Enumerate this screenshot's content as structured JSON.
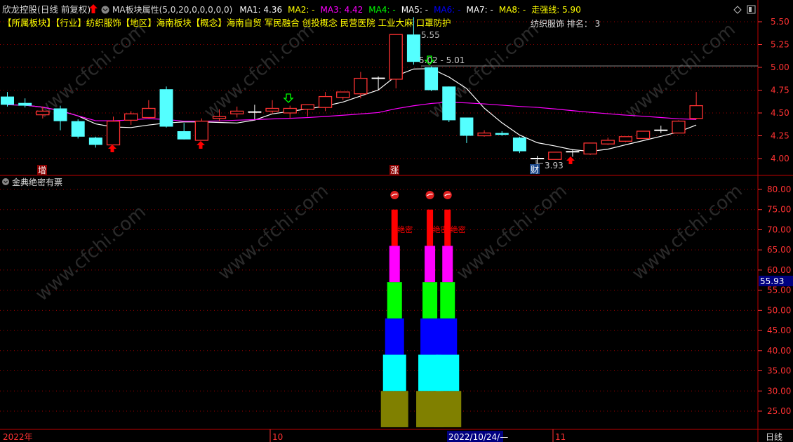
{
  "header": {
    "stock_name": "欣龙控股(日线 前复权)",
    "indicator_name": "MA板块属性(5,0,20,0,0,0,0,0)",
    "ma": [
      {
        "label": "MA1: 4.36",
        "color": "#ffffff"
      },
      {
        "label": "MA2: -",
        "color": "#ffff00"
      },
      {
        "label": "MA3: 4.42",
        "color": "#ff00ff"
      },
      {
        "label": "MA4: -",
        "color": "#00ff00"
      },
      {
        "label": "MA5: -",
        "color": "#ffffff"
      },
      {
        "label": "MA6: -",
        "color": "#0000ff"
      },
      {
        "label": "MA7: -",
        "color": "#ffffff"
      },
      {
        "label": "MA8: -",
        "color": "#ffff00"
      },
      {
        "label": "走强线: 5.90",
        "color": "#ffff00"
      }
    ],
    "sector_line": "【所属板块】【行业】纺织服饰【地区】海南板块【概念】海南自贸 军民融合 创投概念 民营医院 工业大麻 口罩防护",
    "rank_label": "纺织服饰 排名： 3"
  },
  "colors": {
    "up": "#ff3232",
    "down": "#54ffff",
    "ma1": "#ffffff",
    "ma3": "#ff00ff",
    "grid": "#a00000",
    "axis": "#ff3232"
  },
  "price_pane": {
    "y_ticks": [
      "5.50",
      "5.25",
      "5.00",
      "4.75",
      "4.50",
      "4.25",
      "4.00"
    ],
    "high_label": "5.55",
    "range_label": "5.02 - 5.01",
    "low_label": "3.93",
    "markers": [
      {
        "text": "增",
        "bg": "#8b0000"
      },
      {
        "text": "涨",
        "bg": "#8b0000"
      },
      {
        "text": "财",
        "bg": "#1e4a8c"
      }
    ]
  },
  "candles": [
    [
      4.68,
      4.73,
      4.57,
      4.59
    ],
    [
      4.61,
      4.66,
      4.56,
      4.58
    ],
    [
      4.48,
      4.57,
      4.44,
      4.52
    ],
    [
      4.55,
      4.58,
      4.31,
      4.41
    ],
    [
      4.41,
      4.43,
      4.22,
      4.24
    ],
    [
      4.23,
      4.24,
      4.12,
      4.15
    ],
    [
      4.15,
      4.46,
      4.15,
      4.41
    ],
    [
      4.42,
      4.52,
      4.37,
      4.49
    ],
    [
      4.45,
      4.64,
      4.45,
      4.55
    ],
    [
      4.76,
      4.79,
      4.34,
      4.35
    ],
    [
      4.3,
      4.39,
      4.21,
      4.21
    ],
    [
      4.2,
      4.44,
      4.2,
      4.41
    ],
    [
      4.44,
      4.54,
      4.41,
      4.46
    ],
    [
      4.49,
      4.57,
      4.45,
      4.52
    ],
    [
      4.51,
      4.59,
      4.43,
      4.51
    ],
    [
      4.52,
      4.64,
      4.49,
      4.55
    ],
    [
      4.5,
      4.58,
      4.44,
      4.55
    ],
    [
      4.54,
      4.59,
      4.46,
      4.59
    ],
    [
      4.56,
      4.73,
      4.52,
      4.68
    ],
    [
      4.67,
      4.73,
      4.64,
      4.73
    ],
    [
      4.71,
      4.95,
      4.66,
      4.88
    ],
    [
      4.88,
      4.9,
      4.75,
      4.88
    ],
    [
      4.87,
      5.36,
      4.77,
      5.36
    ],
    [
      5.36,
      5.55,
      5.03,
      5.06
    ],
    [
      5.0,
      5.01,
      4.74,
      4.75
    ],
    [
      4.79,
      4.79,
      4.4,
      4.42
    ],
    [
      4.45,
      4.45,
      4.17,
      4.25
    ],
    [
      4.25,
      4.31,
      4.24,
      4.28
    ],
    [
      4.28,
      4.3,
      4.25,
      4.26
    ],
    [
      4.23,
      4.24,
      4.06,
      4.08
    ],
    [
      4.0,
      4.03,
      3.93,
      4.0
    ],
    [
      3.99,
      4.07,
      3.99,
      4.07
    ],
    [
      4.07,
      4.1,
      4.02,
      4.075
    ],
    [
      4.05,
      4.17,
      4.04,
      4.17
    ],
    [
      4.16,
      4.23,
      4.15,
      4.2
    ],
    [
      4.19,
      4.24,
      4.18,
      4.24
    ],
    [
      4.22,
      4.3,
      4.22,
      4.3
    ],
    [
      4.3,
      4.36,
      4.28,
      4.31
    ],
    [
      4.28,
      4.42,
      4.28,
      4.41
    ],
    [
      4.44,
      4.73,
      4.43,
      4.58
    ]
  ],
  "lower_pane": {
    "title": "金典绝密有票",
    "y_ticks": [
      "80.00",
      "75.00",
      "70.00",
      "65.00",
      "60.00",
      "55.00",
      "50.00",
      "45.00",
      "40.00",
      "35.00",
      "30.00",
      "25.00"
    ],
    "current_value": "55.93",
    "signal_label": "绝密",
    "signal_candles": [
      22,
      24,
      25
    ],
    "layers": [
      {
        "from": 21,
        "to": 30,
        "color": "#808000"
      },
      {
        "from": 30,
        "to": 39,
        "color": "#00ffff"
      },
      {
        "from": 39,
        "to": 48,
        "color": "#0000ff"
      },
      {
        "from": 48,
        "to": 57,
        "color": "#00ff00"
      },
      {
        "from": 57,
        "to": 66,
        "color": "#ff00ff"
      },
      {
        "from": 66,
        "to": 75,
        "color": "#ff0000"
      }
    ]
  },
  "x_axis": {
    "year": "2022年",
    "oct": "10",
    "cursor_date": "2022/10/24/—",
    "nov": "11",
    "period": "日线"
  },
  "watermark": "www.cfchi.com"
}
